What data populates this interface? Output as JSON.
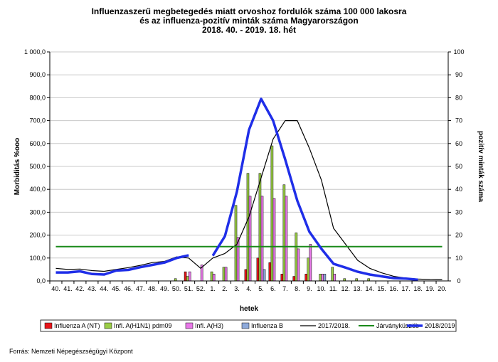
{
  "chart_data": {
    "type": "bar",
    "title_lines": [
      "Influenzaszerű megbetegedés miatt orvoshoz fordulók száma 100 000 lakosra",
      "és az influenza-pozitív minták száma Magyarországon",
      "2018. 40. - 2019. 18. hét"
    ],
    "xlabel": "hetek",
    "ylabel_left": "Morbiditás %ooo",
    "ylabel_right": "pozitív minták száma",
    "ylim_left": [
      0,
      1000
    ],
    "ylim_right": [
      0,
      100
    ],
    "yticks_left": [
      "0,0",
      "100,0",
      "200,0",
      "300,0",
      "400,0",
      "500,0",
      "600,0",
      "700,0",
      "800,0",
      "900,0",
      "1 000,0"
    ],
    "yticks_right": [
      "0",
      "10",
      "20",
      "30",
      "40",
      "50",
      "60",
      "70",
      "80",
      "90",
      "100"
    ],
    "categories": [
      "40.",
      "41.",
      "42.",
      "43.",
      "44.",
      "45.",
      "46.",
      "47.",
      "48.",
      "49.",
      "50.",
      "51.",
      "52.",
      "1.",
      "2.",
      "3.",
      "4.",
      "5.",
      "6.",
      "7.",
      "8.",
      "9.",
      "10.",
      "11.",
      "12.",
      "13.",
      "14.",
      "15.",
      "16.",
      "17.",
      "18.",
      "19.",
      "20."
    ],
    "bar_series": [
      {
        "name": "Influenza A (NT)",
        "color": "#e8161b",
        "values": [
          0,
          0,
          0,
          0,
          0,
          0,
          0,
          0,
          0,
          0,
          0,
          4,
          0,
          0,
          0,
          0,
          5,
          10,
          8,
          3,
          2,
          3,
          0,
          0,
          0,
          0,
          0,
          0,
          0,
          0,
          0,
          0,
          0
        ]
      },
      {
        "name": "Infl. A(H1N1) pdm09",
        "color": "#9acd46",
        "values": [
          0,
          0,
          0,
          0,
          0,
          0,
          0,
          0,
          0,
          0,
          1,
          2,
          0,
          4,
          6,
          33,
          47,
          47,
          59,
          42,
          21,
          10,
          3,
          6,
          1,
          1,
          1,
          0,
          0,
          0,
          0,
          0,
          0
        ]
      },
      {
        "name": "Infl. A(H3)",
        "color": "#e878e8",
        "values": [
          0,
          0,
          0,
          0,
          0,
          0,
          0,
          0,
          0,
          0,
          0,
          4,
          7,
          3,
          6,
          19,
          37,
          37,
          36,
          37,
          14,
          16,
          3,
          3,
          0,
          0,
          0,
          0,
          0,
          0,
          0,
          0,
          0
        ]
      },
      {
        "name": "Influenza B",
        "color": "#8eaadb",
        "values": [
          0,
          0,
          0,
          0,
          0,
          0,
          0,
          0,
          0,
          0,
          0,
          0,
          0,
          0,
          0,
          0,
          0,
          5,
          0,
          0,
          0,
          0,
          3,
          0,
          0,
          0,
          0,
          0,
          0,
          0,
          0,
          0,
          0
        ]
      }
    ],
    "line_series": [
      {
        "name": "2017/2018.",
        "color": "#000000",
        "axis": "left",
        "values": [
          55,
          50,
          52,
          45,
          42,
          50,
          58,
          68,
          80,
          85,
          105,
          100,
          55,
          100,
          120,
          160,
          280,
          450,
          620,
          700,
          700,
          580,
          440,
          230,
          160,
          90,
          55,
          35,
          20,
          12,
          8,
          6,
          5
        ]
      },
      {
        "name": "Járványküszöb",
        "color": "#1a8a1a",
        "axis": "left",
        "values": [
          150,
          150,
          150,
          150,
          150,
          150,
          150,
          150,
          150,
          150,
          150,
          150,
          150,
          150,
          150,
          150,
          150,
          150,
          150,
          150,
          150,
          150,
          150,
          150,
          150,
          150,
          150,
          150,
          150,
          150,
          150,
          150,
          150
        ]
      },
      {
        "name": "2018/2019",
        "color": "#1f2ee8",
        "axis": "left",
        "values": [
          37,
          37,
          42,
          30,
          28,
          45,
          48,
          60,
          70,
          80,
          100,
          112,
          null,
          110,
          195,
          390,
          660,
          795,
          700,
          530,
          350,
          215,
          140,
          75,
          58,
          40,
          28,
          20,
          12,
          10,
          5,
          null,
          null
        ]
      }
    ],
    "grid": true
  },
  "source": "Forrás: Nemzeti Népegészségügyi Központ"
}
